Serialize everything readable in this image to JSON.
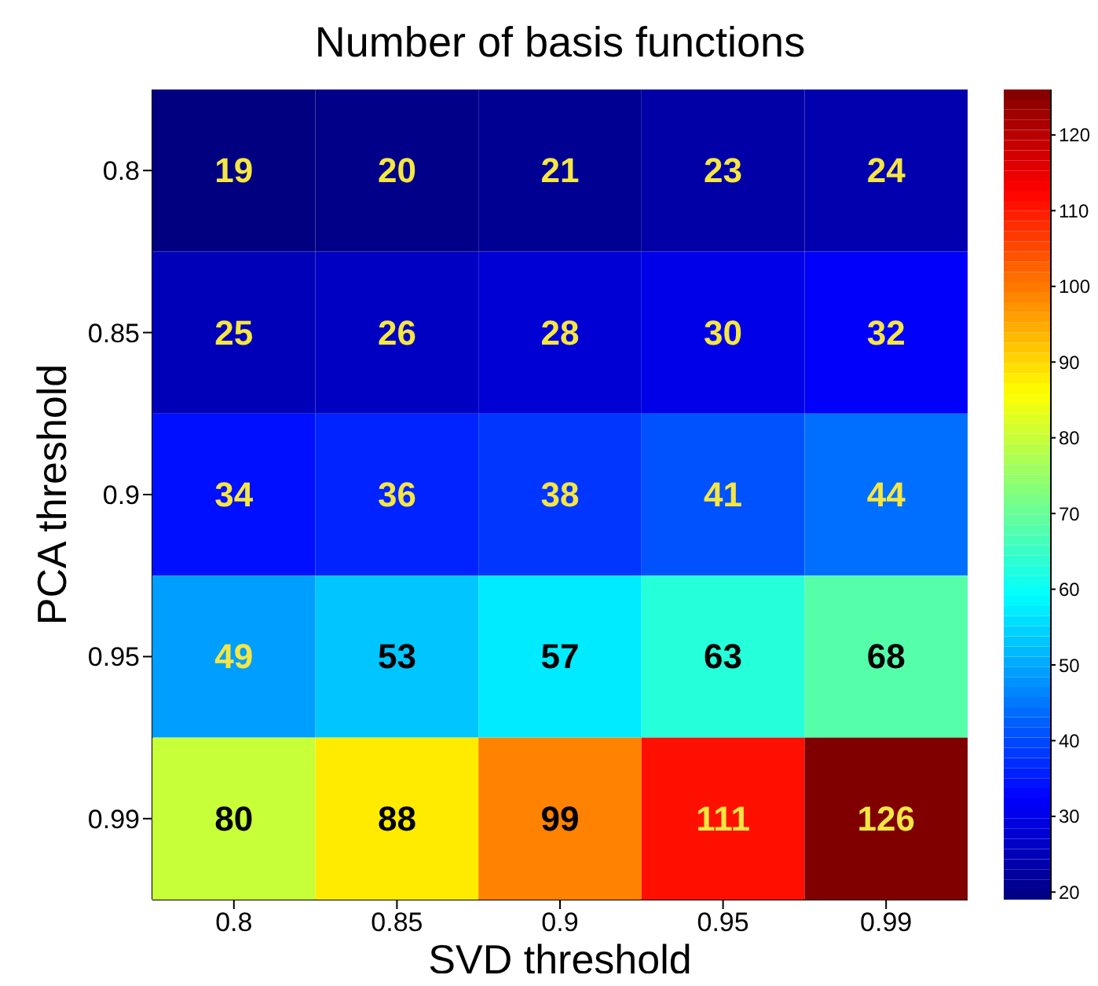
{
  "chart_data": {
    "type": "heatmap",
    "title": "Number of basis functions",
    "xlabel": "SVD threshold",
    "ylabel": "PCA threshold",
    "categories": [
      "0.8",
      "0.85",
      "0.9",
      "0.95",
      "0.99"
    ],
    "y_categories": [
      "0.8",
      "0.85",
      "0.9",
      "0.95",
      "0.99"
    ],
    "cells": [
      [
        19,
        20,
        21,
        23,
        24
      ],
      [
        25,
        26,
        28,
        30,
        32
      ],
      [
        34,
        36,
        38,
        41,
        44
      ],
      [
        49,
        53,
        57,
        63,
        68
      ],
      [
        80,
        88,
        99,
        111,
        126
      ]
    ],
    "clim": [
      19,
      126
    ],
    "cticks": [
      20,
      30,
      40,
      50,
      60,
      70,
      80,
      90,
      100,
      110,
      120
    ],
    "data_labels": true
  }
}
